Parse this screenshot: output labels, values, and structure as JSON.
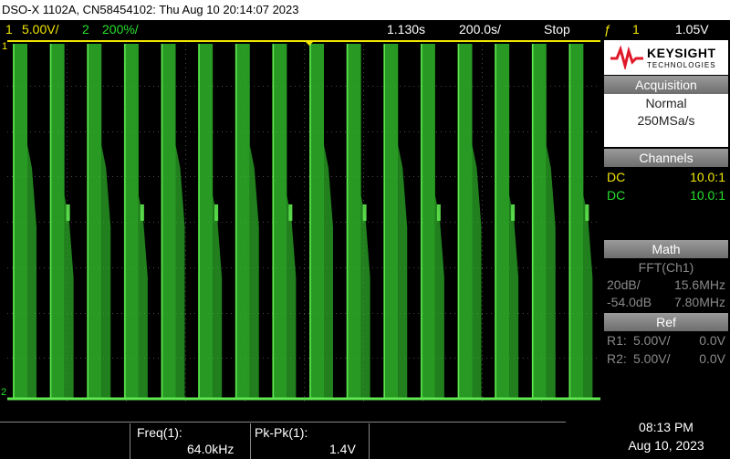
{
  "title_bar": {
    "text": "DSO-X 1102A, CN58454102: Thu Aug 10 20:14:07 2023"
  },
  "status_bar": {
    "ch1_number": "1",
    "ch1_scale": "5.00V/",
    "ch2_number": "2",
    "ch2_scale": "200%/",
    "time_delay": "1.130s",
    "time_scale": "200.0s/",
    "run_state": "Stop",
    "trigger_icon": "trigger-rising-edge-icon",
    "trigger_symbol": "ƒ",
    "trigger_channel": "1",
    "trigger_level": "1.05V"
  },
  "display": {
    "ch1_marker": "1",
    "ch2_marker": "2",
    "pulse_count": 16,
    "colors": {
      "ch1": "#f2e600",
      "ch2": "#27e02c",
      "grid": "#4a4a4a",
      "trace": "#2fb52a",
      "trace_bright": "#5fe84f"
    }
  },
  "panel": {
    "logo": {
      "brand": "KEYSIGHT",
      "subtitle": "TECHNOLOGIES"
    },
    "acquisition": {
      "header": "Acquisition",
      "mode": "Normal",
      "rate": "250MSa/s"
    },
    "channels": {
      "header": "Channels",
      "rows": [
        {
          "coupling": "DC",
          "probe": "10.0:1"
        },
        {
          "coupling": "DC",
          "probe": "10.0:1"
        }
      ]
    },
    "math": {
      "header": "Math",
      "function": "FFT(Ch1)",
      "row1_left": "20dB/",
      "row1_right": "15.6MHz",
      "row2_left": "-54.0dB",
      "row2_right": "7.80MHz"
    },
    "ref": {
      "header": "Ref",
      "r1_label": "R1:",
      "r1_scale": "5.00V/",
      "r1_offset": "0.0V",
      "r2_label": "R2:",
      "r2_scale": "5.00V/",
      "r2_offset": "0.0V"
    }
  },
  "measurements": {
    "freq_label": "Freq(1):",
    "freq_value": "64.0kHz",
    "pkpk_label": "Pk-Pk(1):",
    "pkpk_value": "1.4V"
  },
  "clock": {
    "time": "08:13 PM",
    "date": "Aug 10, 2023"
  }
}
